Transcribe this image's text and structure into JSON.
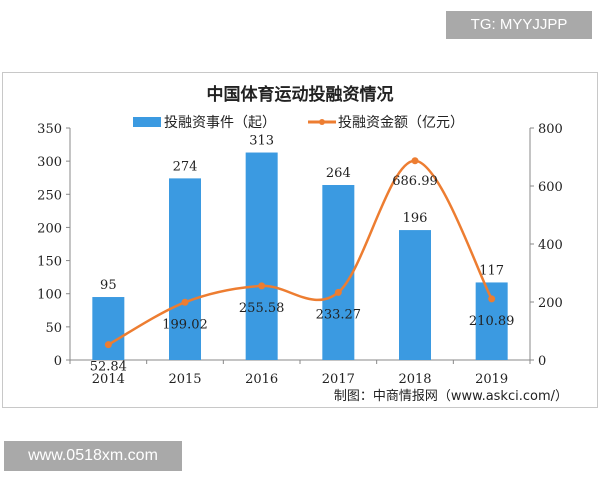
{
  "watermark_top": "TG: MYYJJPP",
  "watermark_bottom": "www.0518xm.com",
  "chart_data": {
    "type": "bar+line",
    "title": "中国体育运动投融资情况",
    "categories": [
      "2014",
      "2015",
      "2016",
      "2017",
      "2018",
      "2019"
    ],
    "series": [
      {
        "name": "投融资事件（起）",
        "type": "bar",
        "axis": "left",
        "color": "#3b9ae1",
        "values": [
          95,
          274,
          313,
          264,
          196,
          117
        ],
        "labels": [
          "95",
          "274",
          "313",
          "264",
          "196",
          "117"
        ]
      },
      {
        "name": "投融资金额（亿元）",
        "type": "line",
        "axis": "right",
        "color": "#ed7d31",
        "values": [
          52.84,
          199.02,
          255.58,
          233.27,
          686.99,
          210.89
        ],
        "labels": [
          "52.84",
          "199.02",
          "255.58",
          "233.27",
          "686.99",
          "210.89"
        ]
      }
    ],
    "left_axis": {
      "range": [
        0,
        350
      ],
      "ticks": [
        "0",
        "50",
        "100",
        "150",
        "200",
        "250",
        "300",
        "350"
      ]
    },
    "right_axis": {
      "range": [
        0,
        800
      ],
      "ticks": [
        "0",
        "200",
        "400",
        "600",
        "800"
      ]
    },
    "legend": "top",
    "grid": false,
    "source": "制图：中商情报网（www.askci.com/）"
  }
}
